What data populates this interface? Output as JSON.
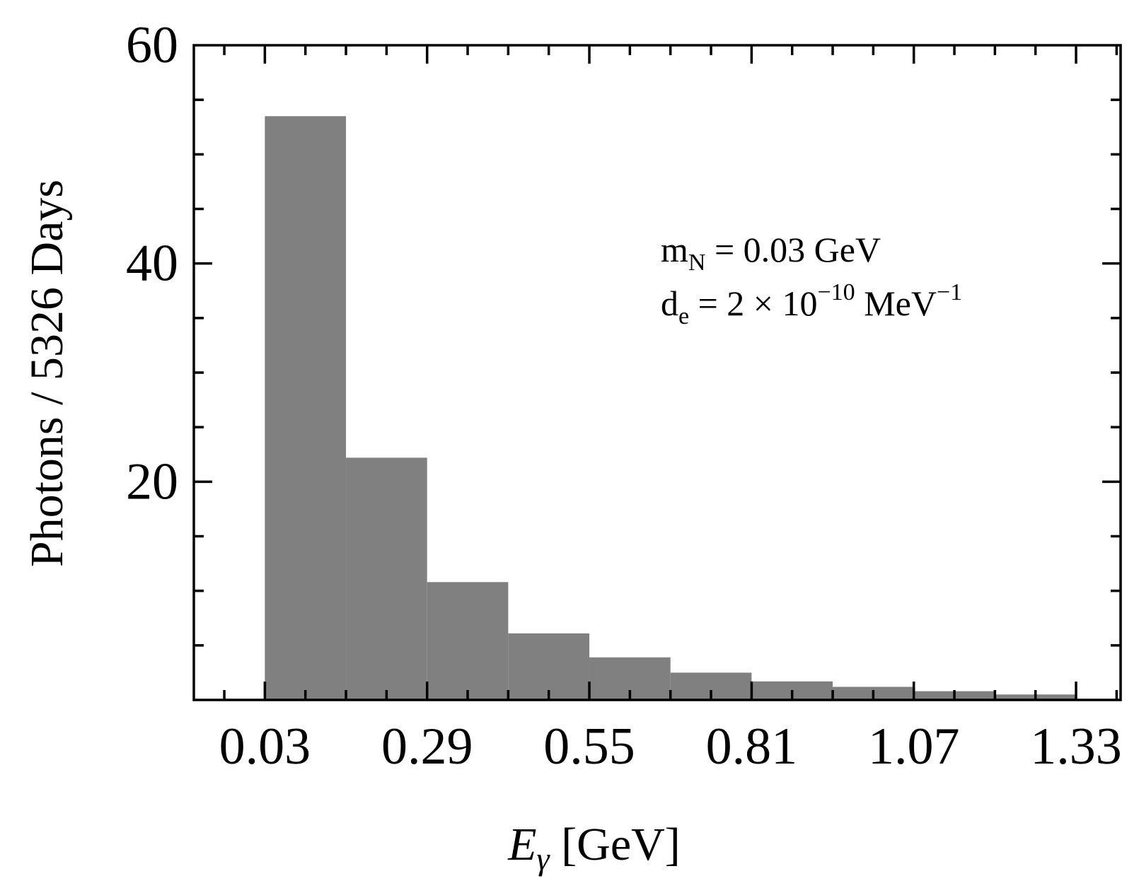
{
  "chart_data": {
    "type": "bar",
    "title": "",
    "xlabel": "E",
    "xlabel_sub": "γ",
    "xlabel_unit": "[GeV]",
    "ylabel": "Photons / 5326 Days",
    "xlim": [
      -0.0838,
      1.4014
    ],
    "ylim": [
      0,
      60
    ],
    "bin_width": 0.13,
    "x_ticks": [
      0.03,
      0.29,
      0.55,
      0.81,
      1.07,
      1.33
    ],
    "x_tick_labels": [
      "0.03",
      "0.29",
      "0.55",
      "0.81",
      "1.07",
      "1.33"
    ],
    "x_minor_step": 0.065,
    "y_ticks": [
      20,
      40,
      60
    ],
    "y_tick_labels": [
      "20",
      "40",
      "60"
    ],
    "y_minor_step": 5,
    "bins": [
      {
        "x0": 0.03,
        "x1": 0.16,
        "value": 53.5
      },
      {
        "x0": 0.16,
        "x1": 0.29,
        "value": 22.2
      },
      {
        "x0": 0.29,
        "x1": 0.42,
        "value": 10.8
      },
      {
        "x0": 0.42,
        "x1": 0.55,
        "value": 6.1
      },
      {
        "x0": 0.55,
        "x1": 0.68,
        "value": 3.9
      },
      {
        "x0": 0.68,
        "x1": 0.81,
        "value": 2.5
      },
      {
        "x0": 0.81,
        "x1": 0.94,
        "value": 1.7
      },
      {
        "x0": 0.94,
        "x1": 1.07,
        "value": 1.2
      },
      {
        "x0": 1.07,
        "x1": 1.2,
        "value": 0.8
      },
      {
        "x0": 1.2,
        "x1": 1.33,
        "value": 0.5
      }
    ],
    "bar_color": "#808080",
    "grid": false,
    "annotations": {
      "mass": {
        "symbol": "m",
        "sub": "N",
        "text": " = 0.03 GeV"
      },
      "dipole": {
        "symbol": "d",
        "sub": "e",
        "text": " = 2 × 10",
        "exp": "−10",
        "unit": " MeV",
        "unit_exp": "−1"
      }
    }
  }
}
